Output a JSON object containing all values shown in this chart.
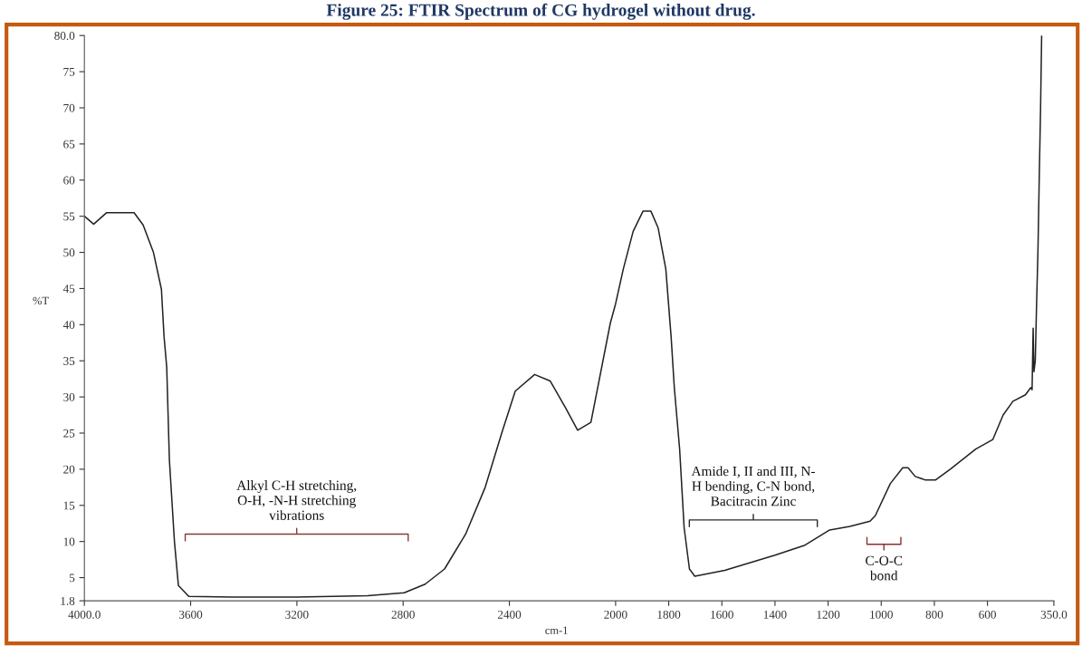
{
  "chart_data": {
    "type": "line",
    "title": "Figure 25: FTIR Spectrum of CG hydrogel without drug.",
    "xlabel": "cm-1",
    "ylabel": "%T",
    "series": [
      {
        "color": "#222222",
        "x": [
          4000,
          3965,
          3916,
          3860,
          3813,
          3779,
          3740,
          3710,
          3700,
          3690,
          3680,
          3661,
          3646,
          3607,
          3400,
          3200,
          2934,
          2796,
          2717,
          2644,
          2565,
          2491,
          2428,
          2378,
          2305,
          2246,
          2187,
          2143,
          2093,
          2020,
          2000,
          1971,
          1934,
          1897,
          1867,
          1840,
          1811,
          1791,
          1779,
          1759,
          1742,
          1722,
          1702,
          1589,
          1400,
          1287,
          1194,
          1118,
          1042,
          1022,
          966,
          919,
          899,
          872,
          833,
          796,
          740,
          644,
          580,
          541,
          504,
          457,
          437,
          432,
          428,
          425,
          420,
          415,
          410,
          405,
          400,
          396
        ],
        "values": [
          55.0,
          53.9,
          55.5,
          55.5,
          55.5,
          53.8,
          50.0,
          44.9,
          38.3,
          34.1,
          21.3,
          10.0,
          3.9,
          2.4,
          2.3,
          2.3,
          2.5,
          2.9,
          4.1,
          6.2,
          11.0,
          17.5,
          25.1,
          30.8,
          33.1,
          32.2,
          28.4,
          25.4,
          26.5,
          40.2,
          42.9,
          47.7,
          52.9,
          55.7,
          55.7,
          53.4,
          47.7,
          38.3,
          31.3,
          22.8,
          11.9,
          6.2,
          5.2,
          6.0,
          8.1,
          9.5,
          11.6,
          12.1,
          12.8,
          13.6,
          18.0,
          20.2,
          20.2,
          19.0,
          18.5,
          18.5,
          20.0,
          22.8,
          24.1,
          27.5,
          29.4,
          30.3,
          31.3,
          31.0,
          39.5,
          33.5,
          35.0,
          43.0,
          50.0,
          60.5,
          70.0,
          80.0
        ]
      }
    ],
    "xlim": [
      4000,
      350
    ],
    "xticks": [
      {
        "value": 4000,
        "label": "4000.0"
      },
      3600,
      3200,
      2800,
      2400,
      2000,
      1800,
      1600,
      1400,
      1200,
      1000,
      800,
      600,
      {
        "value": 350,
        "label": "350.0"
      }
    ],
    "ylim": [
      1.8,
      80
    ],
    "yticks": [
      1.8,
      5,
      10,
      15,
      20,
      25,
      30,
      35,
      40,
      45,
      50,
      55,
      60,
      65,
      70,
      75,
      {
        "value": 80,
        "label": "80.0"
      }
    ],
    "grid": false,
    "legend": false,
    "annotations": [
      "Alkyl C-H stretching,\nO-H, -N-H stretching\nvibrations",
      "Amide I, II and III, N-\nH bending, C-N bond,\nBacitracin Zinc",
      "C-O-C\nbond"
    ]
  }
}
